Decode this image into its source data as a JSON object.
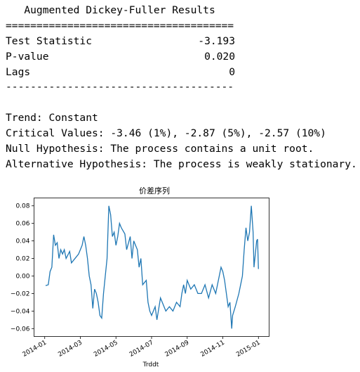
{
  "report": {
    "title": "   Augmented Dickey-Fuller Results",
    "separator_top": "=====================================",
    "rows": [
      [
        "Test Statistic",
        "-3.193"
      ],
      [
        "P-value",
        "0.020"
      ],
      [
        "Lags",
        "0"
      ]
    ],
    "separator_bottom": "-------------------------------------",
    "lines": [
      "Trend: Constant",
      "Critical Values: -3.46 (1%), -2.87 (5%), -2.57 (10%)",
      "Null Hypothesis: The process contains a unit root.",
      "Alternative Hypothesis: The process is weakly stationary."
    ]
  },
  "chart_data": {
    "type": "line",
    "title": "价差序列",
    "x_label": "Trddt",
    "color": "#1f77b4",
    "xlim": [
      -0.6,
      12.6
    ],
    "xticks": [
      {
        "value": 0,
        "label": "2014-01"
      },
      {
        "value": 2,
        "label": "2014-03"
      },
      {
        "value": 4,
        "label": "2014-05"
      },
      {
        "value": 6,
        "label": "2014-07"
      },
      {
        "value": 8,
        "label": "2014-09"
      },
      {
        "value": 10,
        "label": "2014-11"
      },
      {
        "value": 12,
        "label": "2015-01"
      }
    ],
    "ylim": [
      -0.069,
      0.089
    ],
    "yticks": [
      {
        "value": -0.06,
        "label": "−0.06"
      },
      {
        "value": -0.04,
        "label": "−0.04"
      },
      {
        "value": -0.02,
        "label": "−0.02"
      },
      {
        "value": 0,
        "label": "0.00"
      },
      {
        "value": 0.02,
        "label": "0.02"
      },
      {
        "value": 0.04,
        "label": "0.04"
      },
      {
        "value": 0.06,
        "label": "0.06"
      },
      {
        "value": 0.08,
        "label": "0.08"
      }
    ],
    "x": [
      0.05,
      0.2,
      0.3,
      0.4,
      0.5,
      0.6,
      0.7,
      0.8,
      0.9,
      1.0,
      1.1,
      1.2,
      1.4,
      1.5,
      1.7,
      1.9,
      2.1,
      2.2,
      2.3,
      2.4,
      2.5,
      2.6,
      2.7,
      2.8,
      2.9,
      3.0,
      3.1,
      3.2,
      3.3,
      3.5,
      3.6,
      3.7,
      3.8,
      3.9,
      4.0,
      4.1,
      4.2,
      4.3,
      4.5,
      4.6,
      4.8,
      4.9,
      5.0,
      5.1,
      5.2,
      5.3,
      5.4,
      5.5,
      5.7,
      5.8,
      5.9,
      6.0,
      6.1,
      6.2,
      6.3,
      6.5,
      6.6,
      6.8,
      7.0,
      7.2,
      7.4,
      7.6,
      7.7,
      7.8,
      7.9,
      8.0,
      8.2,
      8.4,
      8.6,
      8.8,
      9.0,
      9.2,
      9.4,
      9.6,
      9.8,
      9.9,
      10.0,
      10.1,
      10.2,
      10.3,
      10.4,
      10.5,
      10.55,
      10.7,
      10.9,
      11.0,
      11.1,
      11.2,
      11.3,
      11.4,
      11.5,
      11.6,
      11.7,
      11.75,
      11.8,
      11.9,
      11.95,
      12.0
    ],
    "values": [
      -0.011,
      -0.01,
      0.005,
      0.01,
      0.047,
      0.035,
      0.038,
      0.02,
      0.03,
      0.025,
      0.03,
      0.02,
      0.028,
      0.015,
      0.02,
      0.025,
      0.035,
      0.045,
      0.035,
      0.02,
      0.0,
      -0.01,
      -0.037,
      -0.015,
      -0.02,
      -0.03,
      -0.045,
      -0.048,
      -0.02,
      0.02,
      0.08,
      0.07,
      0.045,
      0.05,
      0.035,
      0.045,
      0.06,
      0.055,
      0.048,
      0.03,
      0.045,
      0.02,
      0.04,
      0.035,
      0.03,
      0.01,
      0.02,
      -0.01,
      -0.005,
      -0.03,
      -0.04,
      -0.045,
      -0.04,
      -0.035,
      -0.05,
      -0.025,
      -0.03,
      -0.04,
      -0.035,
      -0.04,
      -0.03,
      -0.035,
      -0.02,
      -0.01,
      -0.02,
      -0.005,
      -0.015,
      -0.01,
      -0.02,
      -0.02,
      -0.01,
      -0.025,
      -0.01,
      -0.02,
      0.0,
      0.01,
      0.005,
      -0.005,
      -0.02,
      -0.035,
      -0.03,
      -0.06,
      -0.045,
      -0.035,
      -0.02,
      -0.01,
      0.0,
      0.03,
      0.055,
      0.04,
      0.05,
      0.08,
      0.05,
      0.01,
      0.02,
      0.04,
      0.042,
      0.008
    ]
  }
}
